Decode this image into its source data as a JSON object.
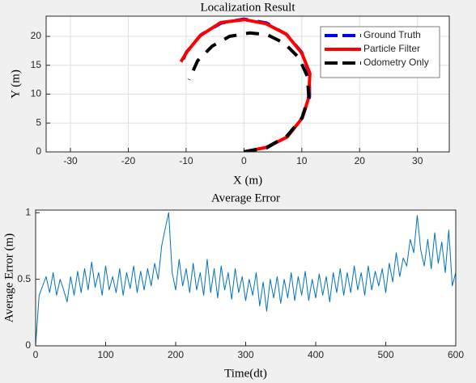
{
  "chart_data": [
    {
      "type": "line",
      "title": "Localization Result",
      "xlabel": "X (m)",
      "ylabel": "Y (m)",
      "xlim": [
        -34.2,
        35.5
      ],
      "xticks": [
        -30,
        -20,
        -10,
        0,
        10,
        20,
        30
      ],
      "ylim": [
        0,
        23.5
      ],
      "yticks": [
        0,
        5,
        10,
        15,
        20
      ],
      "grid": true,
      "legend": "northeast",
      "series": [
        {
          "name": "Ground Truth",
          "color": "#0000ff",
          "linestyle": "dashed",
          "x": [
            0,
            3.93,
            7.39,
            9.96,
            11.33,
            11.33,
            9.96,
            7.39,
            3.93,
            0,
            -3.93,
            -7.39,
            -9.96,
            -10.8
          ],
          "values": [
            0,
            0.69,
            2.69,
            5.75,
            9.5,
            13.5,
            17.25,
            20.31,
            22.31,
            23,
            22.31,
            20.31,
            17.25,
            15.4
          ]
        },
        {
          "name": "Particle Filter",
          "color": "#ff0000",
          "linestyle": "solid",
          "x": [
            0,
            3.9,
            7.5,
            10.1,
            11.2,
            11.4,
            10.0,
            7.3,
            3.8,
            0.1,
            -4.0,
            -7.6,
            -9.8,
            -10.9
          ],
          "values": [
            0,
            0.8,
            2.6,
            5.9,
            9.4,
            13.6,
            17.1,
            20.4,
            22.2,
            22.9,
            22.4,
            20.1,
            17.4,
            15.6
          ]
        },
        {
          "name": "Odometry Only",
          "color": "#000000",
          "linestyle": "dashed",
          "x": [
            0,
            4,
            7.5,
            10,
            11.2,
            11,
            9.5,
            7,
            4,
            1,
            -2.5,
            -5.5,
            -8,
            -9.5
          ],
          "values": [
            0,
            0.8,
            2.8,
            5.8,
            9.5,
            13,
            16.3,
            18.8,
            20.3,
            20.6,
            20,
            18.3,
            15.8,
            12.5
          ]
        }
      ]
    },
    {
      "type": "line",
      "title": "Average Error",
      "xlabel": "Time(dt)",
      "ylabel": "Average Error (m)",
      "xlim": [
        0,
        600
      ],
      "xticks": [
        0,
        100,
        200,
        300,
        400,
        500,
        600
      ],
      "ylim": [
        0,
        1.02
      ],
      "yticks": [
        0,
        0.5,
        1
      ],
      "grid": false,
      "series": [
        {
          "color": "#0072bd",
          "linestyle": "solid",
          "x": [
            0,
            5,
            10,
            15,
            20,
            25,
            30,
            35,
            40,
            45,
            50,
            55,
            60,
            65,
            70,
            75,
            80,
            85,
            90,
            95,
            100,
            105,
            110,
            115,
            120,
            125,
            130,
            135,
            140,
            145,
            150,
            155,
            160,
            165,
            170,
            175,
            180,
            185,
            190,
            195,
            200,
            205,
            210,
            215,
            220,
            225,
            230,
            235,
            240,
            245,
            250,
            255,
            260,
            265,
            270,
            275,
            280,
            285,
            290,
            295,
            300,
            305,
            310,
            315,
            320,
            325,
            330,
            335,
            340,
            345,
            350,
            355,
            360,
            365,
            370,
            375,
            380,
            385,
            390,
            395,
            400,
            405,
            410,
            415,
            420,
            425,
            430,
            435,
            440,
            445,
            450,
            455,
            460,
            465,
            470,
            475,
            480,
            485,
            490,
            495,
            500,
            505,
            510,
            515,
            520,
            525,
            530,
            535,
            540,
            545,
            550,
            555,
            560,
            565,
            570,
            575,
            580,
            585,
            590,
            595,
            600
          ],
          "values": [
            0,
            0.38,
            0.45,
            0.52,
            0.4,
            0.55,
            0.38,
            0.5,
            0.42,
            0.33,
            0.52,
            0.38,
            0.56,
            0.4,
            0.58,
            0.42,
            0.63,
            0.44,
            0.55,
            0.38,
            0.6,
            0.42,
            0.52,
            0.4,
            0.58,
            0.38,
            0.55,
            0.43,
            0.6,
            0.4,
            0.56,
            0.42,
            0.58,
            0.45,
            0.62,
            0.5,
            0.75,
            0.88,
            1.0,
            0.55,
            0.42,
            0.65,
            0.45,
            0.58,
            0.4,
            0.62,
            0.42,
            0.55,
            0.38,
            0.65,
            0.4,
            0.58,
            0.36,
            0.6,
            0.42,
            0.55,
            0.35,
            0.58,
            0.4,
            0.52,
            0.34,
            0.5,
            0.38,
            0.55,
            0.3,
            0.48,
            0.26,
            0.5,
            0.36,
            0.52,
            0.32,
            0.5,
            0.36,
            0.55,
            0.34,
            0.52,
            0.38,
            0.56,
            0.34,
            0.5,
            0.36,
            0.54,
            0.38,
            0.52,
            0.33,
            0.55,
            0.4,
            0.58,
            0.38,
            0.55,
            0.4,
            0.6,
            0.42,
            0.55,
            0.38,
            0.6,
            0.42,
            0.56,
            0.45,
            0.58,
            0.4,
            0.62,
            0.48,
            0.7,
            0.52,
            0.66,
            0.6,
            0.8,
            0.7,
            0.98,
            0.72,
            0.6,
            0.8,
            0.58,
            0.85,
            0.62,
            0.78,
            0.55,
            0.87,
            0.45,
            0.55
          ]
        }
      ]
    }
  ]
}
